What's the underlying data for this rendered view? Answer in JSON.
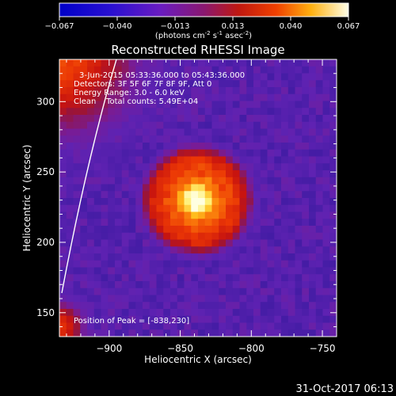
{
  "colorbar": {
    "ticks": [
      "-0.067",
      "-0.040",
      "-0.013",
      "0.013",
      "0.040",
      "0.067"
    ],
    "unit_main": "(photons cm",
    "unit_exp1": "-2",
    "unit_mid": " s",
    "unit_exp2": "-1",
    "unit_end": " asec",
    "unit_exp3": "-2",
    "unit_close": ")"
  },
  "chart_data": {
    "type": "heatmap",
    "title": "Reconstructed RHESSI Image",
    "xlabel": "Heliocentric X (arcsec)",
    "ylabel": "Heliocentric Y (arcsec)",
    "xlim": [
      -935,
      -740
    ],
    "ylim": [
      133,
      330
    ],
    "x_ticks": [
      -900,
      -850,
      -800,
      -750
    ],
    "x_tick_labels": [
      "−900",
      "−850",
      "−800",
      "−750"
    ],
    "y_ticks": [
      150,
      200,
      250,
      300
    ],
    "y_tick_labels": [
      "150",
      "200",
      "250",
      "300"
    ],
    "colorbar_range": [
      -0.067,
      0.067
    ],
    "peak": {
      "x": -838,
      "y": 230
    },
    "source_radius_arcsec": 38,
    "annotations": [
      "3-Jun-2015 05:33:36.000 to 05:43:36.000",
      "Detectors: 3F 5F 6F 7F 8F 9F, Att 0",
      "Energy Range: 3.0 - 6.0 keV",
      "Clean    Total counts: 5.49E+04"
    ],
    "peak_label": "Position of Peak = [-838,230]"
  },
  "timestamp": "31-Oct-2017 06:13"
}
